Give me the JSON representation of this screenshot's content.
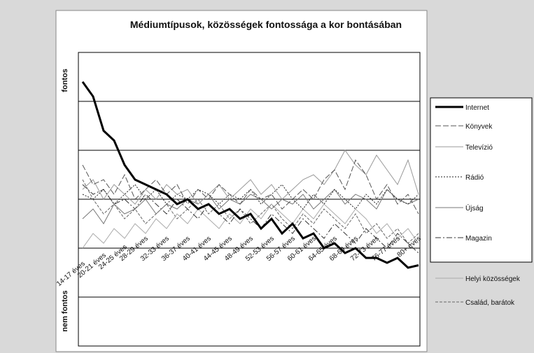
{
  "chart_data": {
    "type": "line",
    "title": "Médiumtípusok, közösségek fontossága a kor bontásában",
    "y_top_label": "fontos",
    "y_bottom_label": "nem fontos",
    "categories": [
      "14-17 éves",
      null,
      "20-21 éves",
      null,
      "24-25 éves",
      null,
      "28-29 éves",
      null,
      "32-33 éves",
      null,
      "36-37 éves",
      null,
      "40-41 éves",
      null,
      "44-45 éves",
      null,
      "48-49 éves",
      null,
      "52-53 éves",
      null,
      "56-57 éves",
      null,
      "60-61 éves",
      null,
      "64-65 éves",
      null,
      "68-69 éves",
      null,
      "72-73 éves",
      null,
      "76-77 éves",
      null,
      "80+ éves"
    ],
    "ylim": [
      0,
      6
    ],
    "yticks": [
      1,
      2,
      3,
      4,
      5
    ],
    "grid": true,
    "series": [
      {
        "name": "Internet",
        "color": "#000000",
        "width": 3,
        "dash": "none",
        "values": [
          5.4,
          5.1,
          4.4,
          4.2,
          3.7,
          3.4,
          3.3,
          3.2,
          3.1,
          2.9,
          3.0,
          2.8,
          2.9,
          2.7,
          2.8,
          2.6,
          2.7,
          2.4,
          2.6,
          2.3,
          2.5,
          2.2,
          2.3,
          2.0,
          2.1,
          1.9,
          2.0,
          1.8,
          1.8,
          1.7,
          1.8,
          1.6,
          1.65
        ]
      },
      {
        "name": "Könyvek",
        "color": "#555555",
        "width": 1,
        "dash": "8 3",
        "values": [
          3.7,
          3.3,
          3.4,
          3.1,
          3.5,
          3.0,
          3.2,
          3.4,
          3.1,
          3.3,
          2.9,
          3.2,
          3.0,
          3.3,
          3.1,
          2.9,
          3.2,
          3.0,
          3.1,
          2.8,
          3.0,
          3.2,
          3.0,
          3.4,
          3.6,
          3.2,
          3.8,
          3.5,
          3.0,
          3.3,
          2.9,
          3.1,
          2.7
        ]
      },
      {
        "name": "Televízió",
        "color": "#999999",
        "width": 1,
        "dash": "none",
        "values": [
          3.2,
          3.4,
          3.0,
          3.3,
          3.1,
          2.9,
          3.2,
          3.0,
          3.3,
          3.1,
          3.2,
          2.9,
          3.1,
          3.3,
          3.0,
          3.2,
          3.4,
          3.1,
          3.3,
          3.0,
          3.2,
          3.4,
          3.5,
          3.3,
          3.6,
          4.0,
          3.7,
          3.5,
          3.9,
          3.6,
          3.3,
          3.8,
          3.1
        ]
      },
      {
        "name": "Rádió",
        "color": "#222222",
        "width": 1,
        "dash": "2 2",
        "values": [
          3.1,
          3.0,
          3.2,
          2.9,
          3.1,
          3.3,
          3.0,
          3.2,
          2.9,
          3.1,
          3.0,
          3.2,
          3.1,
          2.9,
          3.1,
          3.0,
          3.2,
          2.9,
          3.1,
          3.3,
          3.0,
          2.8,
          3.1,
          2.9,
          3.2,
          3.0,
          2.8,
          3.1,
          2.9,
          3.2,
          3.0,
          2.9,
          3.1
        ]
      },
      {
        "name": "Újság",
        "color": "#777777",
        "width": 1,
        "dash": "none",
        "values": [
          2.6,
          2.8,
          2.5,
          2.9,
          2.7,
          2.8,
          3.0,
          2.7,
          2.9,
          2.8,
          3.0,
          2.9,
          3.1,
          2.8,
          3.0,
          2.9,
          3.1,
          3.0,
          2.8,
          3.0,
          2.9,
          3.1,
          2.8,
          3.0,
          3.2,
          2.9,
          3.1,
          3.0,
          2.8,
          3.2,
          3.0,
          2.9,
          3.0
        ]
      },
      {
        "name": "Magazin",
        "color": "#333333",
        "width": 1,
        "dash": "8 3 2 3",
        "values": [
          3.3,
          3.1,
          3.2,
          2.9,
          3.0,
          2.8,
          3.1,
          2.9,
          2.7,
          3.0,
          2.8,
          2.6,
          2.9,
          2.7,
          2.5,
          2.8,
          2.6,
          2.4,
          2.7,
          2.5,
          2.3,
          2.6,
          2.4,
          2.2,
          2.5,
          2.3,
          2.1,
          2.4,
          2.2,
          2.0,
          2.3,
          2.1,
          1.9
        ]
      },
      {
        "name": "Helyi közösségek",
        "color": "#aaaaaa",
        "width": 1,
        "dash": "none",
        "values": [
          2.0,
          2.3,
          2.1,
          2.4,
          2.2,
          2.5,
          2.3,
          2.6,
          2.4,
          2.7,
          2.5,
          2.8,
          2.6,
          2.4,
          2.7,
          2.5,
          2.8,
          2.6,
          2.9,
          2.7,
          2.5,
          2.8,
          2.6,
          2.9,
          2.7,
          2.5,
          2.8,
          2.6,
          2.3,
          2.5,
          2.2,
          2.4,
          2.1
        ]
      },
      {
        "name": "Család, barátok",
        "color": "#666666",
        "width": 1,
        "dash": "4 2",
        "values": [
          3.4,
          3.0,
          2.7,
          2.9,
          2.6,
          2.8,
          2.5,
          2.7,
          2.9,
          2.6,
          2.8,
          3.0,
          2.7,
          2.9,
          2.6,
          2.8,
          2.5,
          2.7,
          2.9,
          2.6,
          2.4,
          2.7,
          2.5,
          2.8,
          2.6,
          2.4,
          2.7,
          2.3,
          2.5,
          2.2,
          2.4,
          2.1,
          2.3
        ]
      }
    ]
  }
}
